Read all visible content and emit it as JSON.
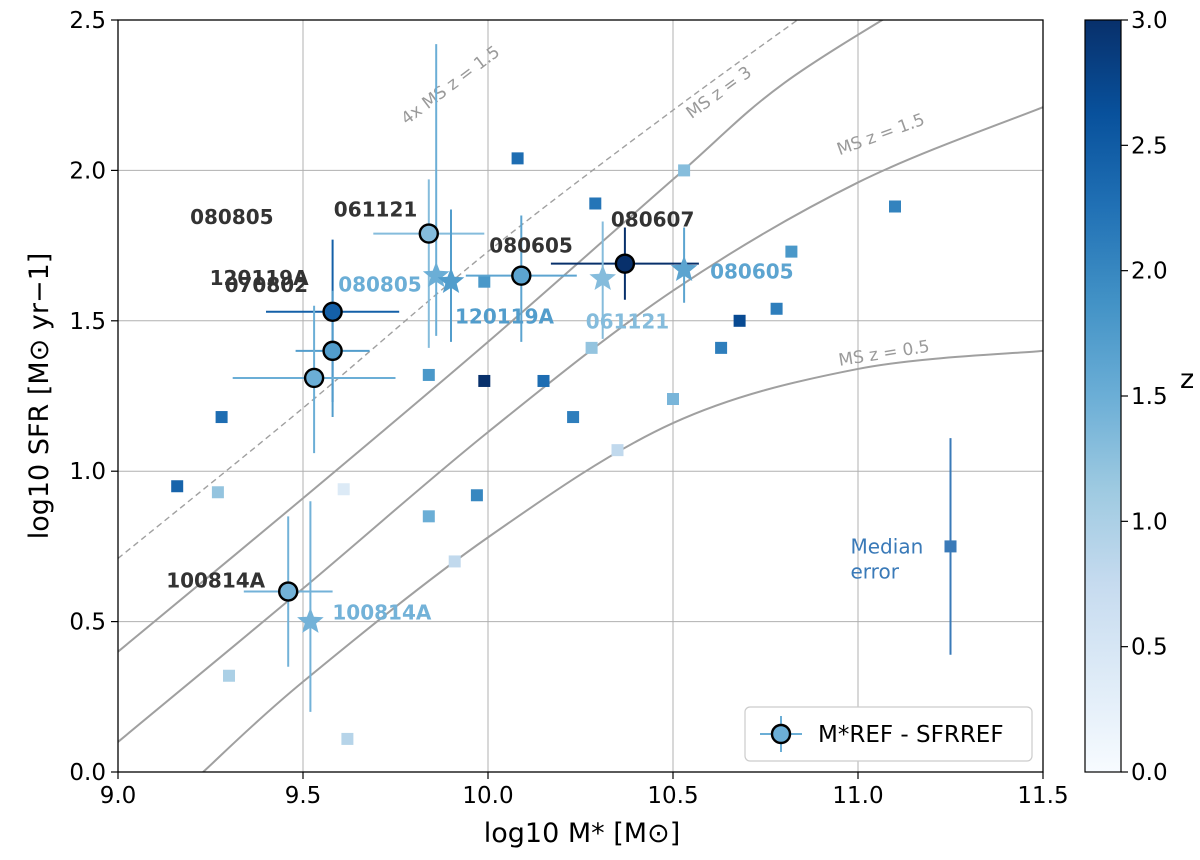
{
  "chart_data": {
    "type": "scatter",
    "xlabel": "log10 M* [M⊙]",
    "ylabel": "log10 SFR [M⊙ yr−1]",
    "xlim": [
      9.0,
      11.5
    ],
    "ylim": [
      0.0,
      2.5
    ],
    "x_ticks": [
      "9.0",
      "9.5",
      "10.0",
      "10.5",
      "11.0",
      "11.5"
    ],
    "y_ticks": [
      "0.0",
      "0.5",
      "1.0",
      "1.5",
      "2.0",
      "2.5"
    ],
    "grid": true,
    "colorbar": {
      "label": "z",
      "range": [
        0.0,
        3.0
      ],
      "ticks": [
        "0.0",
        "0.5",
        "1.0",
        "1.5",
        "2.0",
        "2.5",
        "3.0"
      ]
    },
    "main_sequence_curves": [
      {
        "label": "MS z = 0.5",
        "style": "solid",
        "points": [
          [
            9.23,
            0
          ],
          [
            9.5,
            0.3
          ],
          [
            10.0,
            0.78
          ],
          [
            10.5,
            1.16
          ],
          [
            11.0,
            1.34
          ],
          [
            11.5,
            1.4
          ]
        ]
      },
      {
        "label": "MS z = 1.5",
        "style": "solid",
        "points": [
          [
            9.0,
            0.1
          ],
          [
            9.5,
            0.61
          ],
          [
            10.0,
            1.13
          ],
          [
            10.5,
            1.6
          ],
          [
            11.0,
            1.96
          ],
          [
            11.5,
            2.21
          ]
        ]
      },
      {
        "label": "MS z = 3",
        "style": "solid",
        "points": [
          [
            9.0,
            0.4
          ],
          [
            9.5,
            0.91
          ],
          [
            10.0,
            1.43
          ],
          [
            10.5,
            1.97
          ],
          [
            10.8,
            2.29
          ],
          [
            11.2,
            2.6
          ]
        ]
      },
      {
        "label": "4x MS z = 1.5",
        "style": "dashed",
        "points": [
          [
            9.0,
            0.71
          ],
          [
            9.5,
            1.21
          ],
          [
            10.0,
            1.73
          ],
          [
            10.5,
            2.2
          ],
          [
            10.95,
            2.6
          ]
        ]
      }
    ],
    "ref_points": [
      {
        "name": "061121",
        "x": 9.84,
        "y": 1.79,
        "xerr": 0.15,
        "yerr_lo": 0.38,
        "yerr_hi": 0.18,
        "z": 1.31
      },
      {
        "name": "080605",
        "x": 10.09,
        "y": 1.65,
        "xerr": 0.15,
        "yerr_lo": 0.22,
        "yerr_hi": 0.2,
        "z": 1.64
      },
      {
        "name": "080607",
        "x": 10.37,
        "y": 1.69,
        "xerr": 0.2,
        "yerr_lo": 0.12,
        "yerr_hi": 0.12,
        "z": 3.04
      },
      {
        "name": "070802",
        "x": 9.58,
        "y": 1.53,
        "xerr": 0.18,
        "yerr_lo": 0.3,
        "yerr_hi": 0.24,
        "z": 2.45
      },
      {
        "name": "120119A",
        "x": 9.58,
        "y": 1.4,
        "xerr": 0.1,
        "yerr_lo": 0.22,
        "yerr_hi": 0.2,
        "z": 1.73
      },
      {
        "name": "080805",
        "x": 9.53,
        "y": 1.31,
        "xerr": 0.22,
        "yerr_lo": 0.25,
        "yerr_hi": 0.24,
        "z": 1.5
      },
      {
        "name": "100814A",
        "x": 9.46,
        "y": 0.6,
        "xerr": 0.12,
        "yerr_lo": 0.25,
        "yerr_hi": 0.25,
        "z": 1.44
      }
    ],
    "star_points": [
      {
        "name": "080805",
        "x": 9.86,
        "y": 1.65,
        "yerr_lo": 0.2,
        "yerr_hi": 0.77,
        "z": 1.5
      },
      {
        "name": "120119A",
        "x": 9.9,
        "y": 1.63,
        "yerr_lo": 0.2,
        "yerr_hi": 0.24,
        "z": 1.73
      },
      {
        "name": "061121",
        "x": 10.31,
        "y": 1.64,
        "yerr_lo": 0.2,
        "yerr_hi": 0.19,
        "z": 1.31
      },
      {
        "name": "080605",
        "x": 10.53,
        "y": 1.67,
        "yerr_lo": 0.11,
        "yerr_hi": 0.14,
        "z": 1.64
      },
      {
        "name": "100814A",
        "x": 9.52,
        "y": 0.5,
        "yerr_lo": 0.3,
        "yerr_hi": 0.4,
        "z": 1.44
      }
    ],
    "squares": [
      {
        "x": 10.08,
        "y": 2.04,
        "z": 2.3
      },
      {
        "x": 10.53,
        "y": 2.0,
        "z": 1.3
      },
      {
        "x": 10.29,
        "y": 1.89,
        "z": 2.2
      },
      {
        "x": 11.1,
        "y": 1.88,
        "z": 2.05
      },
      {
        "x": 10.82,
        "y": 1.73,
        "z": 1.8
      },
      {
        "x": 9.99,
        "y": 1.63,
        "z": 1.8
      },
      {
        "x": 10.78,
        "y": 1.54,
        "z": 2.1
      },
      {
        "x": 10.68,
        "y": 1.5,
        "z": 2.7
      },
      {
        "x": 10.63,
        "y": 1.41,
        "z": 2.1
      },
      {
        "x": 10.28,
        "y": 1.41,
        "z": 1.2
      },
      {
        "x": 9.84,
        "y": 1.32,
        "z": 1.8
      },
      {
        "x": 10.15,
        "y": 1.3,
        "z": 2.3
      },
      {
        "x": 9.99,
        "y": 1.3,
        "z": 3.0
      },
      {
        "x": 9.28,
        "y": 1.18,
        "z": 2.3
      },
      {
        "x": 10.23,
        "y": 1.18,
        "z": 2.1
      },
      {
        "x": 10.35,
        "y": 1.07,
        "z": 0.8
      },
      {
        "x": 10.5,
        "y": 1.24,
        "z": 1.4
      },
      {
        "x": 9.16,
        "y": 0.95,
        "z": 2.4
      },
      {
        "x": 9.27,
        "y": 0.93,
        "z": 1.2
      },
      {
        "x": 9.61,
        "y": 0.94,
        "z": 0.4
      },
      {
        "x": 9.97,
        "y": 0.92,
        "z": 2.0
      },
      {
        "x": 9.84,
        "y": 0.85,
        "z": 1.5
      },
      {
        "x": 9.91,
        "y": 0.7,
        "z": 0.8
      },
      {
        "x": 9.3,
        "y": 0.32,
        "z": 1.0
      },
      {
        "x": 9.62,
        "y": 0.11,
        "z": 0.9
      }
    ],
    "median_error": {
      "label_line1": "Median",
      "label_line2": "error",
      "x": 11.25,
      "y": 0.75,
      "yerr": 0.36,
      "color": "#3a7ab8"
    },
    "legend": {
      "entry": "M*REF - SFRREF",
      "position": "lower-right"
    }
  }
}
